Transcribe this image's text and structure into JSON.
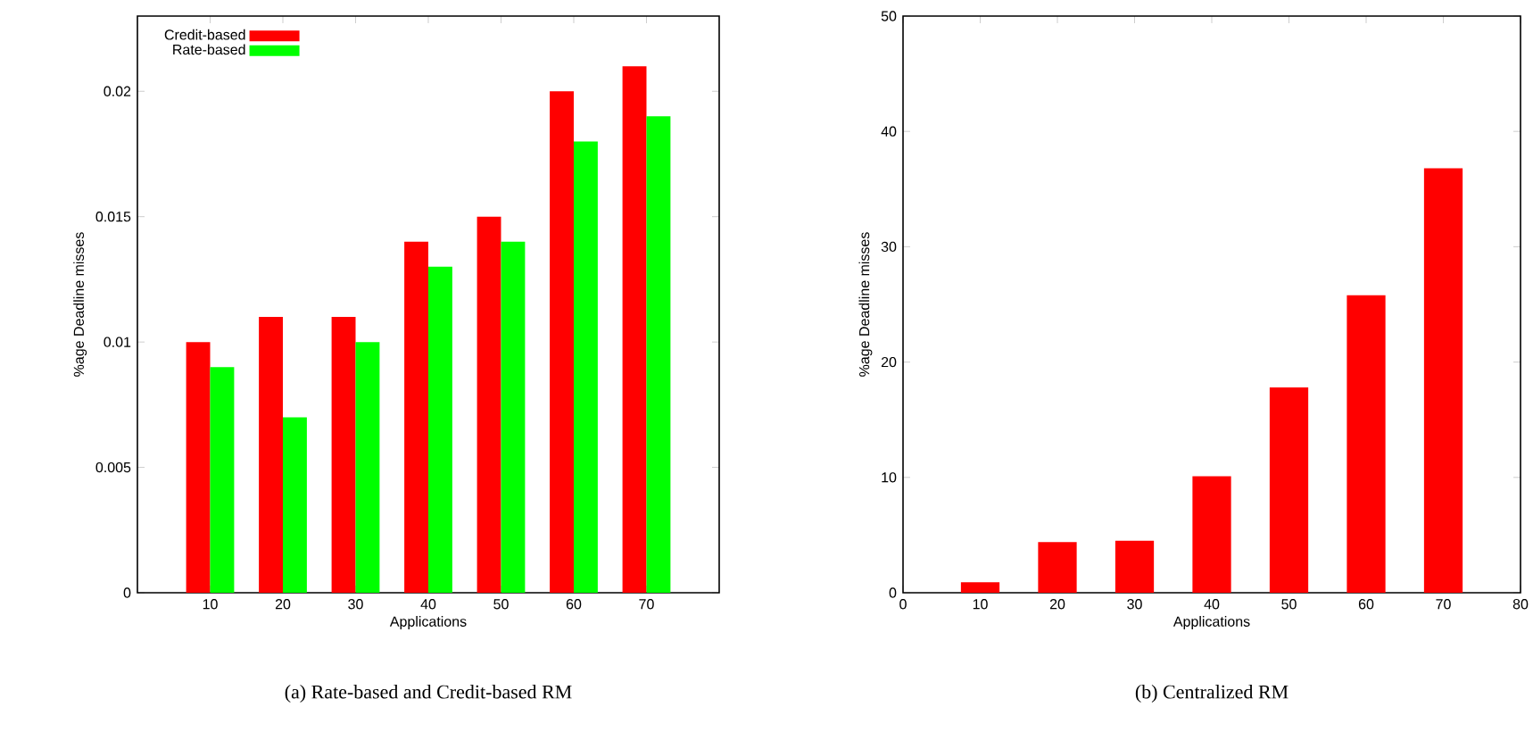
{
  "chart_data": [
    {
      "type": "bar",
      "xlabel": "Applications",
      "ylabel": "%age Deadline misses",
      "categories": [
        "10",
        "20",
        "30",
        "40",
        "50",
        "60",
        "70"
      ],
      "series": [
        {
          "name": "Credit-based",
          "color": "#ff0000",
          "values": [
            0.01,
            0.011,
            0.011,
            0.014,
            0.015,
            0.02,
            0.021
          ]
        },
        {
          "name": "Rate-based",
          "color": "#00ff00",
          "values": [
            0.009,
            0.007,
            0.01,
            0.013,
            0.014,
            0.018,
            0.019
          ]
        }
      ],
      "ylim": [
        0,
        0.023
      ],
      "yticks": [
        0,
        0.005,
        0.01,
        0.015,
        0.02
      ],
      "legend": "top left",
      "annotations": [
        "(a) Rate-based and Credit-based RM"
      ]
    },
    {
      "type": "bar",
      "xlabel": "Applications",
      "ylabel": "%age Deadline misses",
      "x": [
        10,
        20,
        30,
        40,
        50,
        60,
        70
      ],
      "values": [
        0.9,
        4.4,
        4.5,
        10.1,
        17.8,
        25.8,
        36.8
      ],
      "color": "#ff0000",
      "xlim": [
        0,
        80
      ],
      "xticks": [
        0,
        10,
        20,
        30,
        40,
        50,
        60,
        70,
        80
      ],
      "ylim": [
        0,
        50
      ],
      "yticks": [
        0,
        10,
        20,
        30,
        40,
        50
      ],
      "annotations": [
        "(b) Centralized RM"
      ]
    }
  ]
}
